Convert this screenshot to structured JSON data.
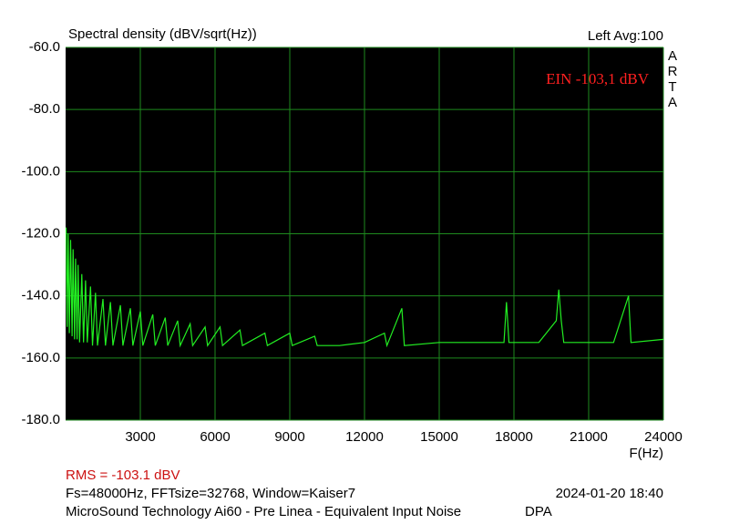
{
  "chart_data": {
    "type": "line",
    "title": "Spectral density (dBV/sqrt(Hz))",
    "top_right": "Left  Avg:100",
    "side_label": [
      "A",
      "R",
      "T",
      "A"
    ],
    "annotation": "EIN -103,1 dBV",
    "x_label": "F(Hz)",
    "rms": "RMS = -103.1 dBV",
    "settings": "Fs=48000Hz, FFTsize=32768, Window=Kaiser7",
    "timestamp": "2024-01-20  18:40",
    "description": "MicroSound Technology Ai60 - Pre Linea - Equivalent Input Noise",
    "mic": "DPA",
    "xlim": [
      0,
      24000
    ],
    "xticks": [
      3000,
      6000,
      9000,
      12000,
      15000,
      18000,
      21000,
      24000
    ],
    "ylim": [
      -180,
      -60
    ],
    "yticks": [
      {
        "value": -180,
        "label": "-180.0"
      },
      {
        "value": -160,
        "label": "-160.0"
      },
      {
        "value": -140,
        "label": "-140.0"
      },
      {
        "value": -120,
        "label": "-120.0"
      },
      {
        "value": -100,
        "label": "-100.0"
      },
      {
        "value": -80,
        "label": "-80.0"
      },
      {
        "value": -60,
        "label": "-60.0"
      }
    ],
    "grid": true,
    "series": [
      {
        "color": "#22ee22",
        "x": [
          20,
          60,
          100,
          150,
          200,
          260,
          300,
          360,
          400,
          460,
          500,
          560,
          650,
          720,
          800,
          870,
          1000,
          1080,
          1200,
          1280,
          1500,
          1600,
          1800,
          1900,
          2200,
          2300,
          2600,
          2700,
          3000,
          3100,
          3500,
          3600,
          4000,
          4100,
          4500,
          4600,
          5000,
          5100,
          5600,
          5700,
          6200,
          6300,
          7000,
          7100,
          8000,
          8100,
          9000,
          9100,
          10000,
          10100,
          11000,
          12000,
          12800,
          12900,
          13500,
          13600,
          15000,
          16500,
          17600,
          17700,
          17800,
          19000,
          19700,
          19800,
          19900,
          20000,
          21000,
          22000,
          22600,
          22700,
          24000
        ],
        "values": [
          -118,
          -150,
          -120,
          -152,
          -122,
          -153,
          -125,
          -154,
          -128,
          -154,
          -130,
          -155,
          -133,
          -155,
          -135,
          -155,
          -137,
          -156,
          -139,
          -156,
          -141,
          -156,
          -142,
          -156,
          -143,
          -156,
          -144,
          -156,
          -145,
          -156,
          -146,
          -156,
          -147,
          -156,
          -148,
          -156,
          -149,
          -156,
          -150,
          -156,
          -150,
          -156,
          -151,
          -156,
          -152,
          -156,
          -152,
          -156,
          -153,
          -156,
          -156,
          -155,
          -152,
          -156,
          -144,
          -156,
          -155,
          -155,
          -155,
          -142,
          -155,
          -155,
          -148,
          -138,
          -148,
          -155,
          -155,
          -155,
          -140,
          -155,
          -154
        ]
      }
    ]
  }
}
